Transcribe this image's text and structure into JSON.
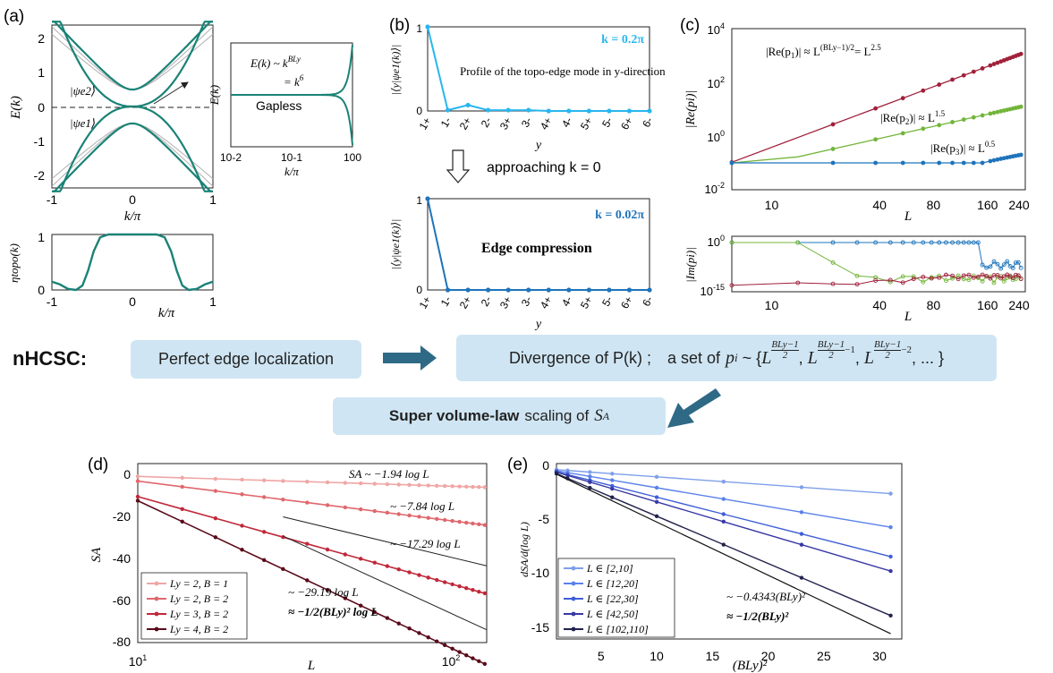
{
  "colors": {
    "teal": "#1a8276",
    "gray": "#b0b0b0",
    "cyan": "#29b6ef",
    "blue": "#1f74bb",
    "crimson": "#a0203a",
    "green": "#72b53a",
    "arrow": "#2e6a86",
    "box": "#cfe5f3"
  },
  "panels": {
    "a": "(a)",
    "b": "(b)",
    "c": "(c)",
    "d": "(d)",
    "e": "(e)"
  },
  "flow": {
    "label": "nHCSC:",
    "box1": "Perfect edge localization",
    "box2_main": "Divergence of P(k) ;",
    "box2_set": "a set of",
    "box2_pi": "p",
    "box2_sub": "i",
    "box2_sim": "~ {",
    "box2_L": "L",
    "box2_frac": "BLy−1",
    "box2_two": "2",
    "box2_m1": "−1",
    "box2_m2": "−2",
    "box2_tail": ", ... }",
    "box3_bold": "Super volume-law",
    "box3_rest": "scaling of",
    "box3_S": "S",
    "box3_A": "A"
  },
  "chart_data": [
    {
      "id": "a-top",
      "type": "line",
      "xlabel": "k/π",
      "ylabel": "E(k)",
      "xlim": [
        -1,
        1
      ],
      "ylim": [
        -2.4,
        2.4
      ],
      "xticks": [
        "-1",
        "0",
        "1"
      ],
      "yticks": [
        "-2",
        "-1",
        "0",
        "1",
        "2"
      ],
      "annotations": [
        "|ψe2⟩",
        "|ψe1⟩"
      ],
      "series": [
        {
          "name": "edge band",
          "color": "#1a8276",
          "gap": 0,
          "alpha": 2.5,
          "bulk": 2.4
        },
        {
          "name": "bulk band",
          "color": "#1a8276",
          "gap": 0.5,
          "alpha": 2.2,
          "bulk": 2.4
        },
        {
          "name": "bulk band 2",
          "color": "#b0b0b0",
          "gap": 0.5,
          "alpha": 2.0,
          "bulk": 2.55
        },
        {
          "name": "bulk band 3",
          "color": "#b0b0b0",
          "gap": 0.5,
          "alpha": 1.8,
          "bulk": 2.7
        }
      ]
    },
    {
      "id": "a-inset",
      "type": "line",
      "xlabel": "k/π",
      "ylabel": "E(k)",
      "xscale": "log",
      "xlim": [
        0.01,
        1
      ],
      "xticks": [
        "10-2",
        "10-1",
        "100"
      ],
      "eq1": "E(k) ~ k",
      "eq1_sup": "BLy",
      "eq2": "= k",
      "eq2_sup": "6",
      "note": "Gapless",
      "exponent": 6
    },
    {
      "id": "a-bottom",
      "type": "line",
      "xlabel": "k/π",
      "ylabel": "ηtopo(k)",
      "xlim": [
        -1,
        1
      ],
      "ylim": [
        0,
        1
      ],
      "xticks": [
        "-1",
        "0",
        "1"
      ],
      "yticks": [
        "0",
        "0.5",
        "1"
      ],
      "x": [
        -1,
        -0.9,
        -0.8,
        -0.7,
        -0.62,
        -0.55,
        -0.48,
        -0.4,
        -0.3,
        -0.2,
        0,
        0.2,
        0.3,
        0.4,
        0.48,
        0.55,
        0.62,
        0.7,
        0.8,
        0.9,
        1
      ],
      "y": [
        0.15,
        0.1,
        0.02,
        0.0,
        0.08,
        0.35,
        0.7,
        0.95,
        1,
        1,
        1,
        1,
        1,
        0.95,
        0.7,
        0.35,
        0.08,
        0.0,
        0.02,
        0.1,
        0.15
      ]
    },
    {
      "id": "b-top",
      "type": "line",
      "xlabel": "y",
      "ylabel": "|⟨y|ψe1(k)⟩|",
      "ylim": [
        0,
        1
      ],
      "categories": [
        "1+",
        "1-",
        "2+",
        "2-",
        "3+",
        "3-",
        "4+",
        "4-",
        "5+",
        "5-",
        "6+",
        "6-"
      ],
      "values": [
        1,
        0.01,
        0.07,
        0.01,
        0.01,
        0.01,
        0.0,
        0.0,
        0.0,
        0.0,
        0.0,
        0.0
      ],
      "label": "k = 0.2π",
      "note": "Profile of the topo-edge mode in y-direction"
    },
    {
      "id": "b-bottom",
      "type": "line",
      "xlabel": "y",
      "ylabel": "|⟨y|ψe1(k)⟩|",
      "ylim": [
        0,
        1
      ],
      "categories": [
        "1+",
        "1-",
        "2+",
        "2-",
        "3+",
        "3-",
        "4+",
        "4-",
        "5+",
        "5-",
        "6+",
        "6-"
      ],
      "values": [
        1,
        0,
        0,
        0,
        0,
        0,
        0,
        0,
        0,
        0,
        0,
        0
      ],
      "label": "k = 0.02π",
      "note": "Edge compression",
      "arrow_text": "approaching k = 0"
    },
    {
      "id": "c-top",
      "type": "scatter",
      "xlabel": "L",
      "ylabel": "|Re(pi)|",
      "xscale": "log",
      "yscale": "log",
      "xlim": [
        6,
        260
      ],
      "ylim": [
        0.01,
        10000
      ],
      "xticks": [
        "10",
        "40",
        "80",
        "160",
        "240"
      ],
      "yticks": [
        "10-2",
        "100",
        "102",
        "104"
      ],
      "x": [
        6,
        14,
        22,
        30,
        38,
        46,
        54,
        62,
        70,
        78,
        86,
        94,
        102,
        110,
        118,
        126,
        134,
        142,
        150,
        158,
        166,
        174,
        182,
        190,
        198,
        206,
        214,
        222,
        230,
        238,
        246
      ],
      "series": [
        {
          "name": "|Re(p1)| ≈ L^(BLy−1)/2 = L^2.5",
          "color": "#a0203a",
          "kind": "power",
          "coef": 0.0012,
          "exp": 2.5
        },
        {
          "name": "|Re(p2)| ≈ L^1.5",
          "color": "#72b53a",
          "kind": "power",
          "coef": 0.0032,
          "exp": 1.5,
          "floor": 0.1
        },
        {
          "name": "|Re(p3)| ≈ L^0.5",
          "color": "#1f74bb",
          "kind": "flat",
          "level": 0.1,
          "rise_from": 150,
          "end": 0.2
        }
      ],
      "labels": {
        "p1_a": "|Re(p",
        "p1_b": "1",
        "p1_c": ")| ≈ L",
        "p1_sup": "(BLy−1)/2",
        "p1_d": "= L",
        "p1_sup2": "2.5",
        "p2_a": "|Re(p",
        "p2_b": "2",
        "p2_c": ")| ≈ L",
        "p2_sup": "1.5",
        "p3_a": "|Re(p",
        "p3_b": "3",
        "p3_c": ")| ≈ L",
        "p3_sup": "0.5"
      }
    },
    {
      "id": "c-bottom",
      "type": "scatter",
      "xlabel": "L",
      "ylabel": "|Im(pi)|",
      "xscale": "log",
      "yscale": "log",
      "xlim": [
        6,
        260
      ],
      "xticks": [
        "10",
        "40",
        "80",
        "160",
        "240"
      ],
      "yticks": [
        "100",
        "10-15"
      ]
    },
    {
      "id": "d",
      "type": "line",
      "xlabel": "L",
      "ylabel": "SA",
      "xscale": "log",
      "xlim": [
        10,
        140
      ],
      "ylim": [
        -80,
        4
      ],
      "xticks": [
        "101",
        "102"
      ],
      "yticks": [
        "0",
        "-20",
        "-40",
        "-60",
        "-80"
      ],
      "series": [
        {
          "name": "Ly = 2, B = 1",
          "color": "#f0a6a6",
          "slope": -1.94,
          "offset": 2.45
        },
        {
          "name": "Ly = 2, B = 2",
          "color": "#e0676d",
          "slope": -7.84,
          "offset": 13.8
        },
        {
          "name": "Ly = 3, B = 2",
          "color": "#c0283a",
          "slope": -17.29,
          "offset": 28.3
        },
        {
          "name": "Ly = 4, B = 2",
          "color": "#5a0a1a",
          "slope": -29.19,
          "offset": 53.8
        }
      ],
      "annotations": [
        "SA ~ −1.94 log L",
        "~ −7.84 log L",
        "~ −17.29 log L",
        "~ −29.19 log L",
        "≈ −1/2(BLy)² log L"
      ]
    },
    {
      "id": "e",
      "type": "line",
      "xlabel": "(BLy)²",
      "ylabel": "dSA/d(log L)",
      "xlim": [
        1,
        32
      ],
      "ylim": [
        -16,
        0.5
      ],
      "xticks": [
        "5",
        "10",
        "15",
        "20",
        "25",
        "30"
      ],
      "yticks": [
        "0",
        "-5",
        "-10",
        "-15"
      ],
      "x": [
        1,
        2,
        4,
        6,
        10,
        16,
        23,
        31
      ],
      "series": [
        {
          "name": "L ∈ [2,10]",
          "color": "#7f9fea",
          "slope": -0.075
        },
        {
          "name": "L ∈ [12,20]",
          "color": "#5a82ea",
          "slope": -0.177
        },
        {
          "name": "L ∈ [22,30]",
          "color": "#3f5ed6",
          "slope": -0.266
        },
        {
          "name": "L ∈ [42,50]",
          "color": "#3838a6",
          "slope": -0.31
        },
        {
          "name": "L ∈ [102,110]",
          "color": "#22224e",
          "slope": -0.445
        }
      ],
      "annotations": [
        "~ −0.4343(BLy)²",
        "≈ −1/2(BLy)²"
      ]
    }
  ]
}
